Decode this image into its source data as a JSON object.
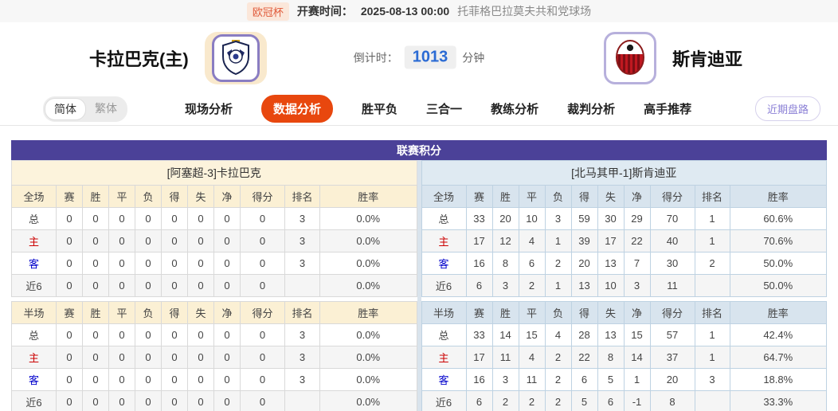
{
  "top_bar": {
    "league_badge": "欧冠杯",
    "kickoff_label": "开赛时间：",
    "kickoff_time": "2025-08-13 00:00",
    "venue": "托菲格巴拉莫夫共和党球场"
  },
  "header": {
    "home_team": "卡拉巴克(主)",
    "away_team": "斯肯迪亚",
    "countdown_label": "倒计时：",
    "countdown_value": "1013",
    "countdown_unit": "分钟"
  },
  "nav": {
    "lang_simplified": "简体",
    "lang_traditional": "繁体",
    "tabs": [
      {
        "label": "现场分析",
        "active": false
      },
      {
        "label": "数据分析",
        "active": true
      },
      {
        "label": "胜平负",
        "active": false
      },
      {
        "label": "三合一",
        "active": false
      },
      {
        "label": "教练分析",
        "active": false
      },
      {
        "label": "裁判分析",
        "active": false
      },
      {
        "label": "高手推荐",
        "active": false
      }
    ],
    "recent_trends_button": "近期盘路"
  },
  "standings": {
    "title": "联赛积分",
    "home": {
      "team_title": "[阿塞超-3]卡拉巴克",
      "full": {
        "headers": [
          "全场",
          "赛",
          "胜",
          "平",
          "负",
          "得",
          "失",
          "净",
          "得分",
          "排名",
          "胜率"
        ],
        "rows": [
          [
            "总",
            "0",
            "0",
            "0",
            "0",
            "0",
            "0",
            "0",
            "0",
            "3",
            "0.0%"
          ],
          [
            "主",
            "0",
            "0",
            "0",
            "0",
            "0",
            "0",
            "0",
            "0",
            "3",
            "0.0%"
          ],
          [
            "客",
            "0",
            "0",
            "0",
            "0",
            "0",
            "0",
            "0",
            "0",
            "3",
            "0.0%"
          ],
          [
            "近6",
            "0",
            "0",
            "0",
            "0",
            "0",
            "0",
            "0",
            "0",
            "",
            "0.0%"
          ]
        ]
      },
      "half": {
        "headers": [
          "半场",
          "赛",
          "胜",
          "平",
          "负",
          "得",
          "失",
          "净",
          "得分",
          "排名",
          "胜率"
        ],
        "rows": [
          [
            "总",
            "0",
            "0",
            "0",
            "0",
            "0",
            "0",
            "0",
            "0",
            "3",
            "0.0%"
          ],
          [
            "主",
            "0",
            "0",
            "0",
            "0",
            "0",
            "0",
            "0",
            "0",
            "3",
            "0.0%"
          ],
          [
            "客",
            "0",
            "0",
            "0",
            "0",
            "0",
            "0",
            "0",
            "0",
            "3",
            "0.0%"
          ],
          [
            "近6",
            "0",
            "0",
            "0",
            "0",
            "0",
            "0",
            "0",
            "0",
            "",
            "0.0%"
          ]
        ]
      }
    },
    "away": {
      "team_title": "[北马其甲-1]斯肯迪亚",
      "full": {
        "headers": [
          "全场",
          "赛",
          "胜",
          "平",
          "负",
          "得",
          "失",
          "净",
          "得分",
          "排名",
          "胜率"
        ],
        "rows": [
          [
            "总",
            "33",
            "20",
            "10",
            "3",
            "59",
            "30",
            "29",
            "70",
            "1",
            "60.6%"
          ],
          [
            "主",
            "17",
            "12",
            "4",
            "1",
            "39",
            "17",
            "22",
            "40",
            "1",
            "70.6%"
          ],
          [
            "客",
            "16",
            "8",
            "6",
            "2",
            "20",
            "13",
            "7",
            "30",
            "2",
            "50.0%"
          ],
          [
            "近6",
            "6",
            "3",
            "2",
            "1",
            "13",
            "10",
            "3",
            "11",
            "",
            "50.0%"
          ]
        ]
      },
      "half": {
        "headers": [
          "半场",
          "赛",
          "胜",
          "平",
          "负",
          "得",
          "失",
          "净",
          "得分",
          "排名",
          "胜率"
        ],
        "rows": [
          [
            "总",
            "33",
            "14",
            "15",
            "4",
            "28",
            "13",
            "15",
            "57",
            "1",
            "42.4%"
          ],
          [
            "主",
            "17",
            "11",
            "4",
            "2",
            "22",
            "8",
            "14",
            "37",
            "1",
            "64.7%"
          ],
          [
            "客",
            "16",
            "3",
            "11",
            "2",
            "6",
            "5",
            "1",
            "20",
            "3",
            "18.8%"
          ],
          [
            "近6",
            "6",
            "2",
            "2",
            "2",
            "5",
            "6",
            "-1",
            "8",
            "",
            "33.3%"
          ]
        ]
      }
    }
  },
  "icons": {
    "home_logo": "qarabag-shield-crest",
    "away_logo": "shkendija-round-crest"
  },
  "colors": {
    "accent_orange": "#e8470e",
    "panel_purple": "#4b4198",
    "countdown_blue": "#2b6bd4",
    "home_row_red": "#cc0000",
    "away_row_blue": "#0000cc",
    "home_section_cream": "#fcf3dc",
    "away_section_blue": "#dfeaf2",
    "league_badge_bg": "#fbe7da"
  }
}
